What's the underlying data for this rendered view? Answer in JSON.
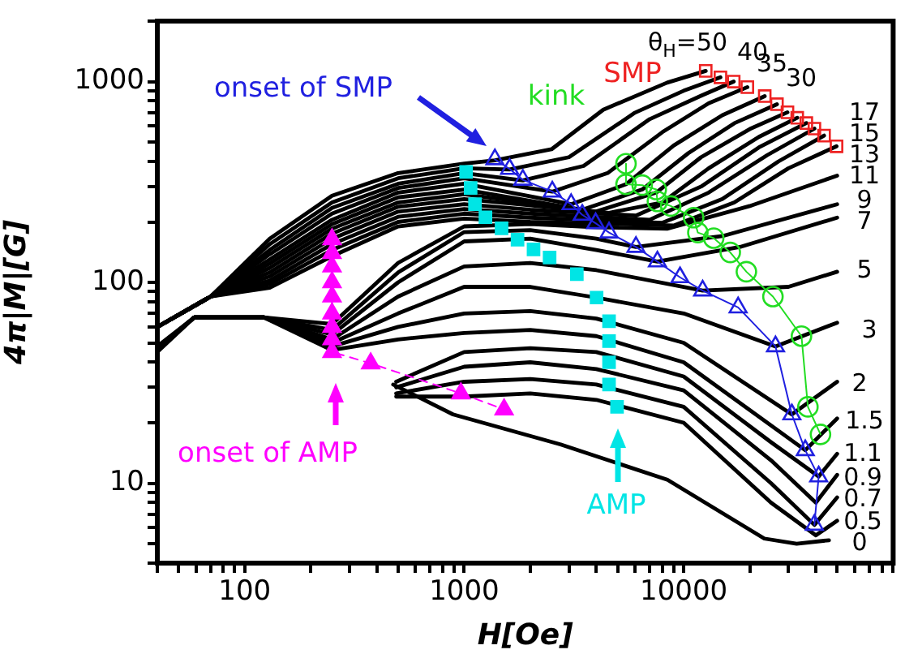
{
  "chart_data": {
    "type": "line",
    "xlabel": "H[Oe]",
    "ylabel": "4π|M|[G]",
    "log": "xy",
    "grid": false,
    "legend": false,
    "marker": "none",
    "line_style": "solid",
    "xlim": [
      40,
      90000
    ],
    "xticks": [
      {
        "value": 40,
        "label": null
      },
      {
        "value": 50,
        "label": null
      },
      {
        "value": 60,
        "label": null
      },
      {
        "value": 70,
        "label": null
      },
      {
        "value": 80,
        "label": null
      },
      {
        "value": 90,
        "label": null
      },
      100,
      {
        "value": 200,
        "label": null
      },
      {
        "value": 300,
        "label": null
      },
      {
        "value": 400,
        "label": null
      },
      {
        "value": 500,
        "label": null
      },
      {
        "value": 600,
        "label": null
      },
      {
        "value": 700,
        "label": null
      },
      {
        "value": 800,
        "label": null
      },
      {
        "value": 900,
        "label": null
      },
      1000,
      {
        "value": 2000,
        "label": null
      },
      {
        "value": 3000,
        "label": null
      },
      {
        "value": 4000,
        "label": null
      },
      {
        "value": 5000,
        "label": null
      },
      {
        "value": 6000,
        "label": null
      },
      {
        "value": 7000,
        "label": null
      },
      {
        "value": 8000,
        "label": null
      },
      {
        "value": 9000,
        "label": null
      },
      10000,
      {
        "value": 20000,
        "label": null
      },
      {
        "value": 30000,
        "label": null
      },
      {
        "value": 40000,
        "label": null
      },
      {
        "value": 50000,
        "label": null
      },
      {
        "value": 60000,
        "label": null
      },
      {
        "value": 70000,
        "label": null
      },
      {
        "value": 80000,
        "label": null
      },
      {
        "value": 90000,
        "label": null
      }
    ],
    "ylim": [
      4,
      2000
    ],
    "yticks": [
      {
        "value": 4,
        "label": null
      },
      {
        "value": 5,
        "label": null
      },
      {
        "value": 6,
        "label": null
      },
      {
        "value": 7,
        "label": null
      },
      {
        "value": 8,
        "label": null
      },
      {
        "value": 9,
        "label": null
      },
      10,
      {
        "value": 20,
        "label": null
      },
      {
        "value": 30,
        "label": null
      },
      {
        "value": 40,
        "label": null
      },
      {
        "value": 50,
        "label": null
      },
      {
        "value": 60,
        "label": null
      },
      {
        "value": 70,
        "label": null
      },
      {
        "value": 80,
        "label": null
      },
      {
        "value": 90,
        "label": null
      },
      100,
      {
        "value": 200,
        "label": null
      },
      {
        "value": 300,
        "label": null
      },
      {
        "value": 400,
        "label": null
      },
      {
        "value": 500,
        "label": null
      },
      {
        "value": 600,
        "label": null
      },
      {
        "value": 700,
        "label": null
      },
      {
        "value": 800,
        "label": null
      },
      {
        "value": 900,
        "label": null
      },
      1000,
      {
        "value": 2000,
        "label": null
      }
    ],
    "series": [
      {
        "color": "#000000",
        "x": [
          40,
          70,
          130,
          250,
          500,
          1000,
          1380,
          2500,
          4300,
          8400,
          12600
        ],
        "values": [
          60,
          85,
          165,
          270,
          350,
          390,
          405,
          460,
          724,
          987,
          1130
        ]
      },
      {
        "color": "#000000",
        "x": [
          40,
          70,
          130,
          250,
          500,
          1000,
          1610,
          3000,
          6000,
          10000,
          14700
        ],
        "values": [
          60,
          85,
          155,
          250,
          330,
          370,
          365,
          420,
          700,
          900,
          1050
        ]
      },
      {
        "color": "#000000",
        "x": [
          40,
          70,
          130,
          250,
          500,
          1000,
          1850,
          3500,
          7000,
          12000,
          16900
        ],
        "values": [
          60,
          85,
          145,
          235,
          310,
          350,
          322,
          380,
          650,
          850,
          1000
        ]
      },
      {
        "color": "#000000",
        "x": [
          40,
          70,
          130,
          250,
          500,
          1000,
          2520,
          4500,
          8000,
          13000,
          19500
        ],
        "values": [
          60,
          85,
          138,
          220,
          295,
          330,
          283,
          350,
          560,
          780,
          938
        ]
      },
      {
        "color": "#000000",
        "x": [
          40,
          70,
          130,
          250,
          500,
          1000,
          3070,
          5460,
          9000,
          15000,
          23400
        ],
        "values": [
          60,
          85,
          130,
          205,
          280,
          310,
          245,
          308,
          480,
          680,
          846
        ]
      },
      {
        "color": "#000000",
        "x": [
          40,
          70,
          130,
          250,
          500,
          1000,
          3450,
          6470,
          10500,
          17000,
          26600
        ],
        "values": [
          60,
          85,
          124,
          195,
          265,
          290,
          230,
          290,
          440,
          620,
          771
        ]
      },
      {
        "color": "#000000",
        "x": [
          40,
          70,
          130,
          250,
          500,
          1000,
          3970,
          7500,
          12000,
          20000,
          29700
        ],
        "values": [
          60,
          85,
          118,
          185,
          250,
          275,
          225,
          280,
          420,
          580,
          703
        ]
      },
      {
        "color": "#000000",
        "x": [
          40,
          70,
          130,
          250,
          500,
          1000,
          4570,
          8000,
          13000,
          22000,
          32900
        ],
        "values": [
          60,
          85,
          112,
          175,
          238,
          260,
          222,
          250,
          370,
          530,
          660
        ]
      },
      {
        "color": "#000000",
        "x": [
          40,
          70,
          130,
          250,
          500,
          1000,
          2000,
          6060,
          12000,
          22000,
          36200
        ],
        "values": [
          60,
          85,
          107,
          165,
          225,
          245,
          230,
          215,
          300,
          470,
          621
        ]
      },
      {
        "color": "#000000",
        "x": [
          40,
          70,
          130,
          250,
          500,
          1000,
          2000,
          7000,
          13000,
          24000,
          39400
        ],
        "values": [
          60,
          85,
          102,
          155,
          212,
          232,
          220,
          205,
          280,
          430,
          583
        ]
      },
      {
        "color": "#000000",
        "x": [
          40,
          70,
          130,
          250,
          500,
          1000,
          2000,
          8000,
          15000,
          27000,
          43600
        ],
        "values": [
          60,
          85,
          98,
          145,
          200,
          220,
          210,
          198,
          260,
          400,
          538
        ]
      },
      {
        "color": "#000000",
        "x": [
          40,
          70,
          130,
          250,
          500,
          1000,
          2000,
          9000,
          17000,
          30000,
          49700
        ],
        "values": [
          60,
          85,
          94,
          135,
          190,
          208,
          200,
          192,
          250,
          370,
          476
        ]
      },
      {
        "color": "#000000",
        "x": [
          40,
          59,
          122,
          250,
          500,
          1000,
          2000,
          4000,
          8400,
          20000,
          50000
        ],
        "values": [
          48,
          67,
          67,
          62,
          125,
          190,
          195,
          188,
          185,
          240,
          340
        ]
      },
      {
        "color": "#000000",
        "x": [
          40,
          59,
          122,
          250,
          500,
          1000,
          2000,
          4000,
          6060,
          15000,
          50000
        ],
        "values": [
          47,
          67,
          67,
          58,
          112,
          178,
          182,
          165,
          150,
          170,
          245
        ]
      },
      {
        "color": "#000000",
        "x": [
          40,
          59,
          122,
          250,
          500,
          1000,
          2000,
          4000,
          7590,
          18000,
          50000
        ],
        "values": [
          47,
          67,
          67,
          55,
          100,
          160,
          165,
          145,
          127,
          150,
          210
        ]
      },
      {
        "color": "#000000",
        "x": [
          40,
          59,
          122,
          250,
          500,
          1000,
          2000,
          4000,
          12200,
          30000,
          50000
        ],
        "values": [
          47,
          67,
          67,
          52,
          85,
          120,
          125,
          115,
          91,
          95,
          113
        ]
      },
      {
        "color": "#000000",
        "x": [
          40,
          59,
          122,
          250,
          500,
          1000,
          2000,
          4000,
          10000,
          26200,
          50000
        ],
        "values": [
          46,
          67,
          67,
          50,
          70,
          95,
          95,
          84,
          70,
          48,
          63
        ]
      },
      {
        "color": "#000000",
        "x": [
          40,
          59,
          122,
          250,
          500,
          1000,
          2000,
          4000,
          10000,
          31100,
          50000
        ],
        "values": [
          46,
          67,
          67,
          48,
          60,
          70,
          72,
          66,
          50,
          22,
          32
        ]
      },
      {
        "color": "#000000",
        "x": [
          40,
          59,
          122,
          250,
          500,
          1000,
          2000,
          4000,
          10000,
          35800,
          50000
        ],
        "values": [
          45,
          67,
          67,
          46,
          52,
          56,
          58,
          54,
          40,
          14.6,
          21
        ]
      },
      {
        "color": "#000000",
        "x": [
          490,
          1000,
          2000,
          4000,
          10000,
          25000,
          41200,
          50000
        ],
        "values": [
          32,
          45,
          47,
          45,
          34,
          16,
          10.8,
          14
        ]
      },
      {
        "color": "#000000",
        "x": [
          490,
          1000,
          2000,
          4000,
          10000,
          25000,
          40000,
          50000
        ],
        "values": [
          30,
          38,
          40,
          37,
          29,
          13,
          8,
          11
        ]
      },
      {
        "color": "#000000",
        "x": [
          490,
          1000,
          2000,
          4000,
          10000,
          25000,
          39400,
          50000
        ],
        "values": [
          28,
          32,
          33,
          31,
          24,
          10,
          6.2,
          8.5
        ]
      },
      {
        "color": "#000000",
        "x": [
          490,
          1000,
          2000,
          4000,
          10000,
          25000,
          40000,
          50000
        ],
        "values": [
          27,
          27,
          28,
          26,
          20,
          8,
          5.5,
          6.5
        ]
      },
      {
        "color": "#000000",
        "x": [
          475,
          890,
          2750,
          8430,
          23300,
          32700,
          45900
        ],
        "values": [
          31,
          22,
          15.6,
          10.4,
          5.3,
          5.0,
          5.2
        ]
      },
      {
        "type": "line",
        "marker": "triangle",
        "color": "#2020e0",
        "x": [
          1380,
          1610,
          1850,
          2520,
          3070,
          3450,
          3970,
          4570,
          6060,
          7590,
          9620,
          12200,
          17700,
          26200,
          31100,
          35800,
          41200,
          39400
        ],
        "values": [
          410,
          367,
          324,
          283,
          245,
          217,
          197,
          177,
          150,
          127,
          106,
          91,
          75,
          48,
          22,
          14.6,
          10.8,
          6.2
        ]
      },
      {
        "type": "line",
        "marker": "circle",
        "color": "#22dd22",
        "x": [
          5460,
          5460,
          6470,
          7500,
          7590,
          8730,
          11100,
          11600,
          13700,
          16300,
          19300,
          25500,
          34400,
          36800,
          42000
        ],
        "values": [
          390,
          308,
          305,
          290,
          253,
          240,
          210,
          177,
          166,
          141,
          113,
          85,
          54,
          24,
          17.5
        ]
      },
      {
        "type": "scatter",
        "marker": "square",
        "color": "#ee2222",
        "x": [
          12600,
          14700,
          16900,
          19500,
          23400,
          26600,
          29700,
          32900,
          36200,
          39400,
          43600,
          49700
        ],
        "values": [
          1130,
          1050,
          1000,
          938,
          846,
          771,
          703,
          660,
          621,
          583,
          538,
          476
        ]
      },
      {
        "type": "scatter",
        "marker": "square",
        "color": "#00e5e5",
        "x": [
          1020,
          1070,
          1120,
          1250,
          1480,
          1750,
          2070,
          2450,
          3260,
          4010,
          4570,
          4570,
          4570,
          4570,
          4970
        ],
        "values": [
          355,
          295,
          245,
          211,
          186,
          163,
          146,
          133,
          110,
          84,
          64,
          51,
          40,
          31,
          24
        ]
      },
      {
        "type": "line",
        "marker": "triangle",
        "line_style": "dashed",
        "color": "#ff00ff",
        "x": [
          250,
          250,
          250,
          250,
          250,
          250,
          250,
          250,
          250,
          375,
          966,
          1520
        ],
        "values": [
          164,
          140,
          120,
          100,
          85,
          70,
          60,
          52,
          45,
          39.5,
          28,
          23.3
        ]
      }
    ],
    "annotations": [
      "onset of SMP",
      "kink",
      "SMP",
      "θ$_{H}$=50",
      "40",
      "35",
      "30",
      "17",
      "15",
      "13",
      "11",
      "9",
      "7",
      "5",
      "3",
      "2",
      "1.5",
      "1.1",
      "0.9",
      "0.7",
      "0.5",
      "0",
      "onset of AMP",
      "AMP"
    ]
  }
}
